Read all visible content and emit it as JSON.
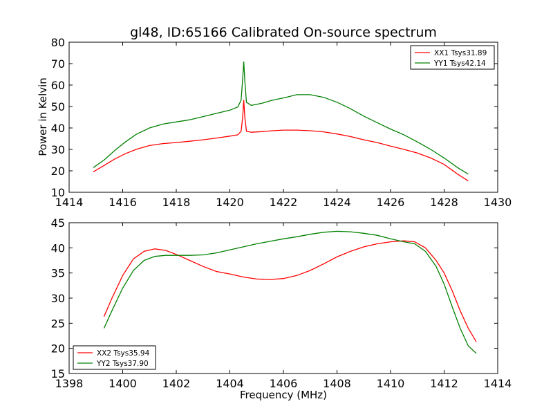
{
  "chart_data": [
    {
      "type": "line",
      "title": "gl48, ID:65166 Calibrated On-source spectrum",
      "xlabel": "",
      "ylabel": "Power in Kelvin",
      "xlim": [
        1414,
        1430
      ],
      "ylim": [
        10,
        80
      ],
      "xticks": [
        1414,
        1416,
        1418,
        1420,
        1422,
        1424,
        1426,
        1428,
        1430
      ],
      "yticks": [
        10,
        20,
        30,
        40,
        50,
        60,
        70,
        80
      ],
      "grid": false,
      "legend_position": "top-right",
      "series": [
        {
          "name": "XX1 Tsys31.89",
          "color": "#ff0000",
          "x": [
            1414.9,
            1415.3,
            1415.7,
            1416.1,
            1416.5,
            1417.0,
            1417.5,
            1418.0,
            1418.5,
            1419.0,
            1419.5,
            1420.0,
            1420.3,
            1420.42,
            1420.48,
            1420.52,
            1420.56,
            1420.62,
            1420.8,
            1421.2,
            1421.6,
            1422.0,
            1422.5,
            1423.0,
            1423.5,
            1424.0,
            1424.5,
            1425.0,
            1425.5,
            1426.0,
            1426.5,
            1427.0,
            1427.5,
            1428.0,
            1428.5,
            1428.9
          ],
          "y": [
            19.5,
            22.5,
            25.5,
            28.0,
            30.0,
            31.8,
            32.7,
            33.2,
            33.8,
            34.5,
            35.3,
            36.2,
            36.8,
            38.5,
            45.0,
            53.0,
            45.0,
            38.5,
            38.0,
            38.3,
            38.7,
            39.0,
            39.0,
            38.7,
            38.2,
            37.2,
            36.0,
            34.5,
            33.2,
            31.5,
            30.0,
            28.3,
            26.0,
            23.0,
            18.5,
            15.3
          ]
        },
        {
          "name": "YY1 Tsys42.14",
          "color": "#008000",
          "x": [
            1414.9,
            1415.3,
            1415.7,
            1416.1,
            1416.5,
            1417.0,
            1417.5,
            1418.0,
            1418.5,
            1419.0,
            1419.5,
            1420.0,
            1420.3,
            1420.42,
            1420.48,
            1420.52,
            1420.56,
            1420.62,
            1420.8,
            1421.2,
            1421.6,
            1422.0,
            1422.5,
            1423.0,
            1423.5,
            1424.0,
            1424.5,
            1425.0,
            1425.5,
            1426.0,
            1426.5,
            1427.0,
            1427.5,
            1428.0,
            1428.5,
            1428.9
          ],
          "y": [
            21.5,
            25.0,
            29.5,
            33.5,
            37.0,
            40.0,
            41.8,
            42.8,
            43.8,
            45.3,
            46.8,
            48.3,
            49.8,
            53.0,
            63.0,
            71.0,
            62.0,
            52.0,
            50.5,
            51.5,
            53.0,
            54.0,
            55.5,
            55.5,
            54.3,
            52.0,
            49.0,
            45.5,
            42.5,
            39.5,
            36.8,
            33.5,
            30.0,
            26.0,
            21.5,
            18.5
          ]
        }
      ]
    },
    {
      "type": "line",
      "title": "",
      "xlabel": "Frequency (MHz)",
      "ylabel": "",
      "xlim": [
        1398,
        1414
      ],
      "ylim": [
        15,
        45
      ],
      "xticks": [
        1398,
        1400,
        1402,
        1404,
        1406,
        1408,
        1410,
        1412,
        1414
      ],
      "yticks": [
        15,
        20,
        25,
        30,
        35,
        40,
        45
      ],
      "grid": false,
      "legend_position": "bottom-left",
      "series": [
        {
          "name": "XX2 Tsys35.94",
          "color": "#ff0000",
          "x": [
            1399.3,
            1399.6,
            1400.0,
            1400.4,
            1400.8,
            1401.2,
            1401.6,
            1402.0,
            1402.5,
            1403.0,
            1403.5,
            1404.0,
            1404.5,
            1405.0,
            1405.5,
            1406.0,
            1406.5,
            1407.0,
            1407.5,
            1408.0,
            1408.5,
            1409.0,
            1409.5,
            1410.0,
            1410.5,
            1410.9,
            1411.3,
            1411.7,
            1412.0,
            1412.3,
            1412.6,
            1412.9,
            1413.2
          ],
          "y": [
            26.3,
            30.0,
            34.5,
            37.8,
            39.3,
            39.8,
            39.5,
            38.7,
            37.5,
            36.3,
            35.3,
            34.8,
            34.2,
            33.8,
            33.7,
            33.9,
            34.5,
            35.5,
            36.8,
            38.2,
            39.3,
            40.2,
            40.8,
            41.2,
            41.4,
            41.2,
            40.0,
            37.5,
            35.0,
            31.5,
            27.5,
            24.0,
            21.3
          ]
        },
        {
          "name": "YY2 Tsys37.90",
          "color": "#008000",
          "x": [
            1399.3,
            1399.6,
            1400.0,
            1400.4,
            1400.8,
            1401.2,
            1401.6,
            1402.0,
            1402.5,
            1403.0,
            1403.5,
            1404.0,
            1404.5,
            1405.0,
            1405.5,
            1406.0,
            1406.5,
            1407.0,
            1407.5,
            1408.0,
            1408.5,
            1409.0,
            1409.5,
            1410.0,
            1410.5,
            1410.9,
            1411.3,
            1411.7,
            1412.0,
            1412.3,
            1412.6,
            1412.9,
            1413.2
          ],
          "y": [
            24.0,
            27.5,
            32.0,
            35.5,
            37.5,
            38.3,
            38.5,
            38.5,
            38.5,
            38.6,
            39.0,
            39.6,
            40.2,
            40.8,
            41.3,
            41.8,
            42.2,
            42.7,
            43.1,
            43.3,
            43.2,
            42.9,
            42.5,
            41.8,
            41.2,
            40.8,
            39.3,
            36.3,
            32.8,
            28.3,
            24.0,
            20.5,
            19.0
          ]
        }
      ]
    }
  ]
}
